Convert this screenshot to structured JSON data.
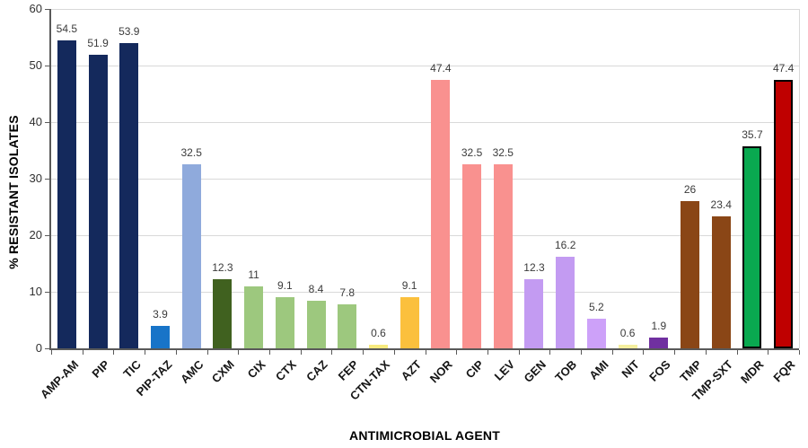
{
  "chart_data": {
    "type": "bar",
    "title": "",
    "xlabel": "ANTIMICROBIAL AGENT",
    "ylabel": "% RESISTANT ISOLATES",
    "ylim": [
      0,
      60
    ],
    "yticks": [
      0,
      10,
      20,
      30,
      40,
      50,
      60
    ],
    "grid": true,
    "legend": false,
    "value_labels_shown": true,
    "bars": [
      {
        "category": "AMP-AM",
        "value": 54.5,
        "label": "54.5",
        "color": "#14295C"
      },
      {
        "category": "PIP",
        "value": 51.9,
        "label": "51.9",
        "color": "#14295C"
      },
      {
        "category": "TIC",
        "value": 53.9,
        "label": "53.9",
        "color": "#14295C"
      },
      {
        "category": "PIP-TAZ",
        "value": 3.9,
        "label": "3.9",
        "color": "#1874C8"
      },
      {
        "category": "AMC",
        "value": 32.5,
        "label": "32.5",
        "color": "#8FAADC"
      },
      {
        "category": "CXM",
        "value": 12.3,
        "label": "12.3",
        "color": "#40611F"
      },
      {
        "category": "CIX",
        "value": 11,
        "label": "11",
        "color": "#9DC87E"
      },
      {
        "category": "CTX",
        "value": 9.1,
        "label": "9.1",
        "color": "#9DC87E"
      },
      {
        "category": "CAZ",
        "value": 8.4,
        "label": "8.4",
        "color": "#9DC87E"
      },
      {
        "category": "FEP",
        "value": 7.8,
        "label": "7.8",
        "color": "#9DC87E"
      },
      {
        "category": "CTN-TAX",
        "value": 0.6,
        "label": "0.6",
        "color": "#F7EA7E"
      },
      {
        "category": "AZT",
        "value": 9.1,
        "label": "9.1",
        "color": "#FBC03D"
      },
      {
        "category": "NOR",
        "value": 47.4,
        "label": "47.4",
        "color": "#F9918F"
      },
      {
        "category": "CIP",
        "value": 32.5,
        "label": "32.5",
        "color": "#F9918F"
      },
      {
        "category": "LEV",
        "value": 32.5,
        "label": "32.5",
        "color": "#F9918F"
      },
      {
        "category": "GEN",
        "value": 12.3,
        "label": "12.3",
        "color": "#C39BF2"
      },
      {
        "category": "TOB",
        "value": 16.2,
        "label": "16.2",
        "color": "#C39BF2"
      },
      {
        "category": "AMI",
        "value": 5.2,
        "label": "5.2",
        "color": "#CDA1F9"
      },
      {
        "category": "NIT",
        "value": 0.6,
        "label": "0.6",
        "color": "#F5EF9E"
      },
      {
        "category": "FOS",
        "value": 1.9,
        "label": "1.9",
        "color": "#7030A0"
      },
      {
        "category": "TMP",
        "value": 26,
        "label": "26",
        "color": "#8A4616"
      },
      {
        "category": "TMP-SXT",
        "value": 23.4,
        "label": "23.4",
        "color": "#8A4616"
      },
      {
        "category": "MDR",
        "value": 35.7,
        "label": "35.7",
        "color": "#09A950",
        "border": "#000000"
      },
      {
        "category": "FQR",
        "value": 47.4,
        "label": "47.4",
        "color": "#BF0000",
        "border": "#000000"
      }
    ]
  },
  "style": {
    "background": "#FFFFFF",
    "axis_color": "#595959",
    "grid_color": "#D9D9D9",
    "value_label_color": "#3B3B3B",
    "tick_label_color": "#303030"
  }
}
